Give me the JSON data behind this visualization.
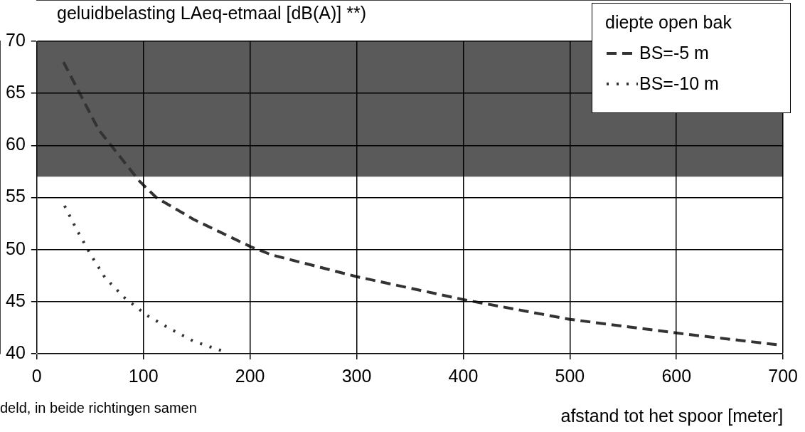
{
  "chart_data": {
    "type": "line",
    "title": "geluidbelasting LAeq-etmaal [dB(A)] **)",
    "xlabel": "afstand tot het spoor [meter]",
    "legend_title": "diepte open bak",
    "legend": "top right",
    "grid": true,
    "marker": "none",
    "xlim": [
      0,
      700
    ],
    "xticks": [
      0,
      100,
      200,
      300,
      400,
      500,
      600,
      700
    ],
    "ylim": [
      40,
      70
    ],
    "yticks": [
      40,
      45,
      50,
      55,
      60,
      65,
      70
    ],
    "bands": [
      {
        "axis": "y",
        "from": 57,
        "to": 70,
        "color": "#5a5a5a"
      }
    ],
    "annotations": [
      "deld, in beide richtingen samen"
    ],
    "series": [
      {
        "name": "BS=-5 m",
        "color": "#333333",
        "line_style": "dashed",
        "x": [
          25,
          58,
          96,
          112,
          147,
          200,
          220,
          300,
          400,
          500,
          607,
          700
        ],
        "values": [
          68,
          61.5,
          56.6,
          55,
          52.9,
          50.3,
          49.5,
          47.4,
          45.2,
          43.3,
          41.9,
          40.8
        ]
      },
      {
        "name": "BS=-10 m",
        "color": "#333333",
        "line_style": "dotted",
        "x": [
          26,
          38,
          50,
          64,
          82,
          103,
          125,
          147,
          173
        ],
        "values": [
          54.2,
          51.8,
          49.6,
          47.3,
          45.4,
          43.7,
          42.4,
          41.2,
          40.3
        ]
      }
    ]
  }
}
